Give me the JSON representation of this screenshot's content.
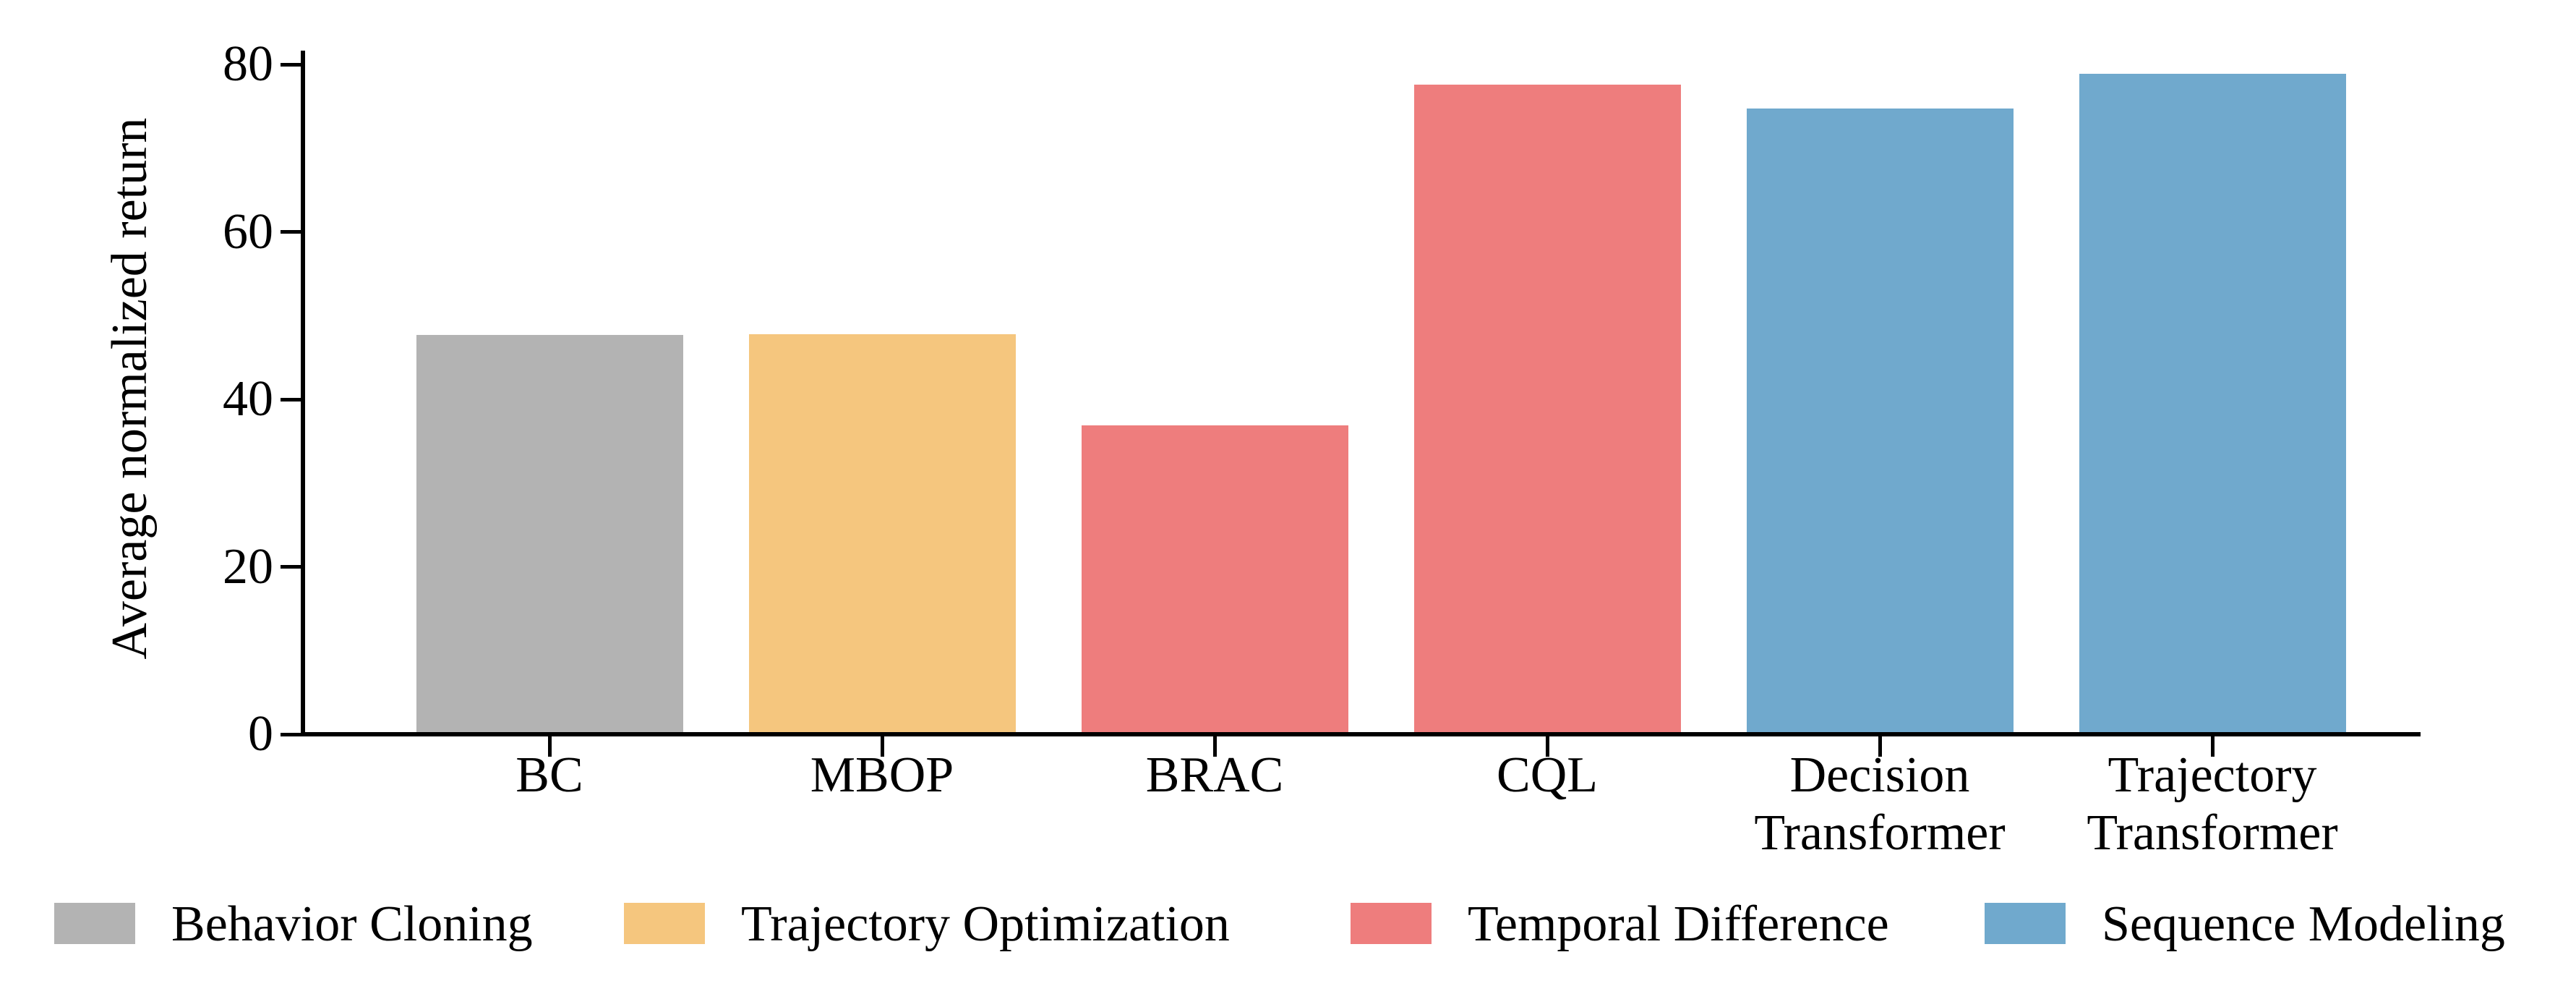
{
  "chart_data": {
    "type": "bar",
    "title": "",
    "xlabel": "",
    "ylabel": "Average normalized return",
    "ylim": [
      0,
      81.6
    ],
    "grid": false,
    "legend_position": "bottom",
    "yticks": [
      {
        "value": 0,
        "label": "0"
      },
      {
        "value": 20,
        "label": "20"
      },
      {
        "value": 40,
        "label": "40"
      },
      {
        "value": 60,
        "label": "60"
      },
      {
        "value": 80,
        "label": "80"
      }
    ],
    "bars": [
      {
        "category": "BC",
        "category_lines": [
          "BC"
        ],
        "value": 47.7,
        "color": "#b3b3b3",
        "group": "Behavior Cloning"
      },
      {
        "category": "MBOP",
        "category_lines": [
          "MBOP"
        ],
        "value": 47.8,
        "color": "#f5c67e",
        "group": "Trajectory Optimization"
      },
      {
        "category": "BRAC",
        "category_lines": [
          "BRAC"
        ],
        "value": 36.9,
        "color": "#ee7d7d",
        "group": "Temporal Difference"
      },
      {
        "category": "CQL",
        "category_lines": [
          "CQL"
        ],
        "value": 77.6,
        "color": "#ee7d7d",
        "group": "Temporal Difference"
      },
      {
        "category": "Decision Transformer",
        "category_lines": [
          "Decision",
          "Transformer"
        ],
        "value": 74.7,
        "color": "#70a9cd",
        "group": "Sequence Modeling"
      },
      {
        "category": "Trajectory Transformer",
        "category_lines": [
          "Trajectory",
          "Transformer"
        ],
        "value": 78.9,
        "color": "#70a9cd",
        "group": "Sequence Modeling"
      }
    ],
    "legend": [
      {
        "label": "Behavior Cloning",
        "color": "#b3b3b3"
      },
      {
        "label": "Trajectory Optimization",
        "color": "#f5c67e"
      },
      {
        "label": "Temporal Difference",
        "color": "#ee7d7d"
      },
      {
        "label": "Sequence Modeling",
        "color": "#70a9cd"
      }
    ],
    "colors": {
      "axis": "#000000",
      "background": "#ffffff",
      "text": "#000000"
    }
  }
}
